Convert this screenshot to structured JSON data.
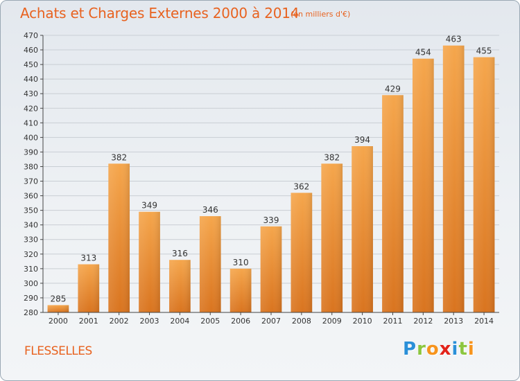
{
  "title": "Achats et Charges Externes 2000 à 2014",
  "subtitle": "(en milliers d'€)",
  "commune": "FLESSELLES",
  "brand": {
    "letters": [
      "P",
      "r",
      "o",
      "x",
      "i",
      "t",
      "i"
    ],
    "colors": [
      "#2a8fd8",
      "#8cc63f",
      "#f7941d",
      "#e2231a",
      "#2a8fd8",
      "#8cc63f",
      "#f7941d"
    ]
  },
  "colors": {
    "bar_light": "#f5a64c",
    "bar_dark": "#d9741f",
    "axis": "#444444",
    "grid": "#c9ced4",
    "text": "#333333",
    "accent": "#e8621f"
  },
  "chart_data": {
    "type": "bar",
    "categories": [
      "2000",
      "2001",
      "2002",
      "2003",
      "2004",
      "2005",
      "2006",
      "2007",
      "2008",
      "2009",
      "2010",
      "2011",
      "2012",
      "2013",
      "2014"
    ],
    "values": [
      285,
      313,
      382,
      349,
      316,
      346,
      310,
      339,
      362,
      382,
      394,
      429,
      454,
      463,
      455
    ],
    "ylim": [
      280,
      470
    ],
    "ytick_step": 10,
    "grid": true,
    "data_labels": true
  }
}
